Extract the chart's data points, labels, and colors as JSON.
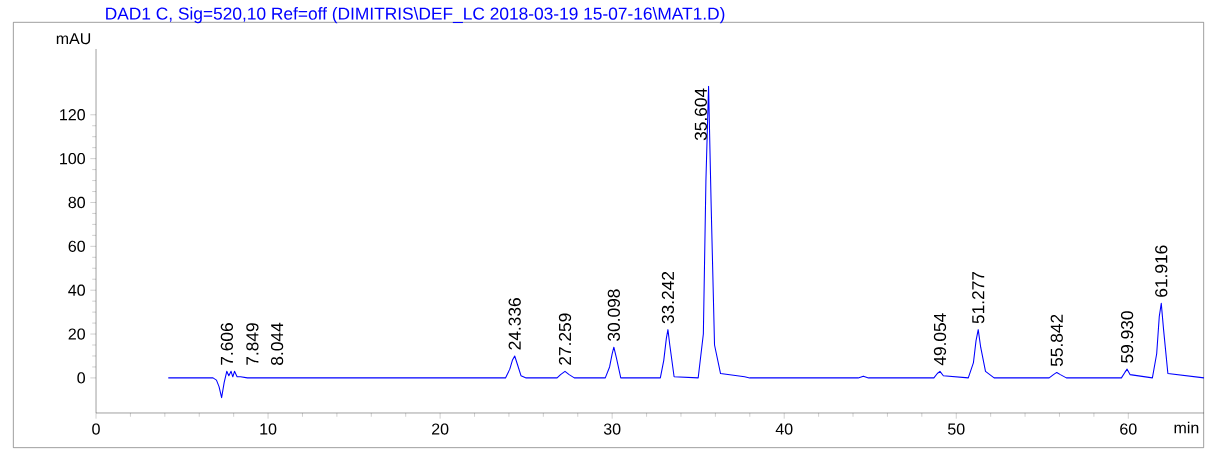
{
  "chart_data": {
    "type": "line",
    "title": "DAD1 C, Sig=520,10 Ref=off (DIMITRIS\\DEF_LC 2018-03-19 15-07-16\\MAT1.D)",
    "ylabel": "mAU",
    "xlabel": "min",
    "x": [
      4.2,
      6.8,
      7.0,
      7.15,
      7.3,
      7.45,
      7.6,
      7.72,
      7.85,
      7.95,
      8.05,
      8.2,
      8.4,
      8.8,
      9.4,
      18.0,
      23.8,
      24.05,
      24.2,
      24.336,
      24.5,
      24.7,
      25.0,
      26.8,
      27.0,
      27.259,
      27.5,
      27.8,
      29.6,
      29.85,
      30.0,
      30.098,
      30.25,
      30.5,
      32.8,
      33.0,
      33.15,
      33.242,
      33.35,
      33.6,
      35.0,
      35.3,
      35.45,
      35.604,
      35.75,
      35.95,
      36.3,
      37.7,
      38.0,
      44.3,
      44.6,
      44.9,
      48.7,
      48.9,
      49.054,
      49.25,
      50.7,
      51.0,
      51.15,
      51.277,
      51.42,
      51.7,
      52.2,
      55.4,
      55.65,
      55.842,
      56.05,
      56.4,
      59.6,
      59.8,
      59.93,
      60.1,
      61.4,
      61.65,
      61.8,
      61.916,
      62.05,
      62.3,
      64.4
    ],
    "series": [
      {
        "color": "#0000ff",
        "values": [
          0,
          0,
          -1,
          -4,
          -9,
          -2,
          3,
          1,
          3,
          0.5,
          3,
          0.5,
          0.5,
          0,
          0,
          0,
          0,
          4,
          8,
          10,
          6,
          1,
          0,
          0,
          1.5,
          3,
          1.5,
          0,
          0,
          5,
          11,
          14,
          9,
          0,
          0,
          8,
          18,
          22,
          15,
          0.5,
          0,
          20,
          90,
          133,
          80,
          15,
          2,
          0.5,
          0,
          0,
          0.8,
          0,
          0,
          2,
          3,
          1,
          0,
          7,
          17,
          22,
          14,
          3,
          0,
          0,
          1.5,
          2.5,
          1.5,
          0,
          0,
          2.5,
          4,
          1.5,
          0,
          11,
          28,
          34,
          22,
          2,
          0
        ]
      }
    ],
    "xlim": [
      0,
      64.4
    ],
    "ylim": [
      -16,
      150
    ],
    "xticks": [
      0,
      10,
      20,
      30,
      40,
      50,
      60
    ],
    "yticks": [
      0,
      20,
      40,
      60,
      80,
      100,
      120
    ],
    "annotations": [
      {
        "text": "7.606",
        "x": 7.606,
        "y": 3
      },
      {
        "text": "7.849",
        "x": 7.849,
        "y": 3
      },
      {
        "text": "8.044",
        "x": 8.044,
        "y": 3
      },
      {
        "text": "24.336",
        "x": 24.336,
        "y": 10
      },
      {
        "text": "27.259",
        "x": 27.259,
        "y": 3
      },
      {
        "text": "30.098",
        "x": 30.098,
        "y": 14
      },
      {
        "text": "33.242",
        "x": 33.242,
        "y": 22
      },
      {
        "text": "35.604",
        "x": 35.604,
        "y": 133
      },
      {
        "text": "49.054",
        "x": 49.054,
        "y": 3
      },
      {
        "text": "51.277",
        "x": 51.277,
        "y": 22
      },
      {
        "text": "55.842",
        "x": 55.842,
        "y": 2.5
      },
      {
        "text": "59.930",
        "x": 59.93,
        "y": 4
      },
      {
        "text": "61.916",
        "x": 61.916,
        "y": 34
      }
    ],
    "grid": false,
    "marker": "none",
    "line_style": "solid"
  }
}
